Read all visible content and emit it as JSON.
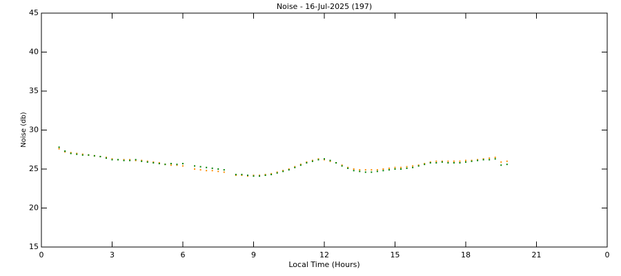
{
  "chart_data": {
    "type": "scatter",
    "title": "Noise - 16-Jul-2025 (197)",
    "x_label": "Local Time (Hours)",
    "y_label": "Noise (db)",
    "xlim": [
      0,
      24
    ],
    "xticks": [
      0,
      3,
      6,
      9,
      12,
      15,
      18,
      21,
      {
        "value": 24,
        "label": "0"
      }
    ],
    "ylim": [
      15,
      45
    ],
    "yticks": [
      15,
      20,
      25,
      30,
      35,
      40,
      45
    ],
    "x": [
      0.75,
      1,
      1.25,
      1.5,
      1.75,
      2,
      2.25,
      2.5,
      2.75,
      3,
      3.25,
      3.5,
      3.75,
      4,
      4.25,
      4.5,
      4.75,
      5,
      5.25,
      5.5,
      5.75,
      6,
      6.5,
      6.75,
      7,
      7.25,
      7.5,
      7.75,
      8.25,
      8.5,
      8.75,
      9,
      9.25,
      9.5,
      9.75,
      10,
      10.25,
      10.5,
      10.75,
      11,
      11.25,
      11.5,
      11.75,
      12,
      12.25,
      12.5,
      12.75,
      13,
      13.25,
      13.5,
      13.75,
      14,
      14.25,
      14.5,
      14.75,
      15,
      15.25,
      15.5,
      15.75,
      16,
      16.25,
      16.5,
      16.75,
      17,
      17.25,
      17.5,
      17.75,
      18,
      18.25,
      18.5,
      18.75,
      19,
      19.25,
      19.5,
      19.75
    ],
    "series": [
      {
        "color": "#ff8c00",
        "values": [
          27.6,
          27.2,
          27.1,
          27.0,
          26.9,
          26.8,
          26.7,
          26.6,
          26.5,
          26.3,
          26.2,
          26.2,
          26.2,
          26.1,
          26.1,
          26.0,
          25.9,
          25.8,
          25.6,
          25.5,
          25.5,
          25.4,
          25.0,
          24.9,
          24.8,
          24.8,
          24.7,
          24.6,
          24.2,
          24.2,
          24.1,
          24.2,
          24.2,
          24.3,
          24.4,
          24.6,
          24.8,
          25.0,
          25.3,
          25.6,
          25.9,
          26.1,
          26.3,
          26.2,
          26.0,
          25.8,
          25.5,
          25.2,
          25.0,
          24.9,
          24.9,
          24.9,
          24.9,
          25.0,
          25.1,
          25.2,
          25.2,
          25.3,
          25.4,
          25.5,
          25.7,
          25.9,
          26.0,
          26.0,
          26.0,
          26.0,
          26.0,
          26.1,
          26.1,
          26.2,
          26.3,
          26.4,
          26.5,
          25.9,
          26.0
        ]
      },
      {
        "color": "#008000",
        "values": [
          27.8,
          27.3,
          27.0,
          26.9,
          26.8,
          26.8,
          26.7,
          26.6,
          26.4,
          26.2,
          26.2,
          26.1,
          26.1,
          26.2,
          26.0,
          25.9,
          25.8,
          25.7,
          25.6,
          25.7,
          25.6,
          25.7,
          25.4,
          25.3,
          25.2,
          25.1,
          25.0,
          24.9,
          24.3,
          24.3,
          24.2,
          24.1,
          24.1,
          24.2,
          24.3,
          24.5,
          24.7,
          24.9,
          25.2,
          25.5,
          25.8,
          26.0,
          26.2,
          26.3,
          26.1,
          25.8,
          25.4,
          25.1,
          24.8,
          24.7,
          24.6,
          24.6,
          24.7,
          24.8,
          24.9,
          25.0,
          25.0,
          25.1,
          25.2,
          25.4,
          25.6,
          25.8,
          25.8,
          25.9,
          25.8,
          25.8,
          25.8,
          25.9,
          26.0,
          26.1,
          26.2,
          26.2,
          26.3,
          25.5,
          25.6
        ]
      }
    ]
  }
}
